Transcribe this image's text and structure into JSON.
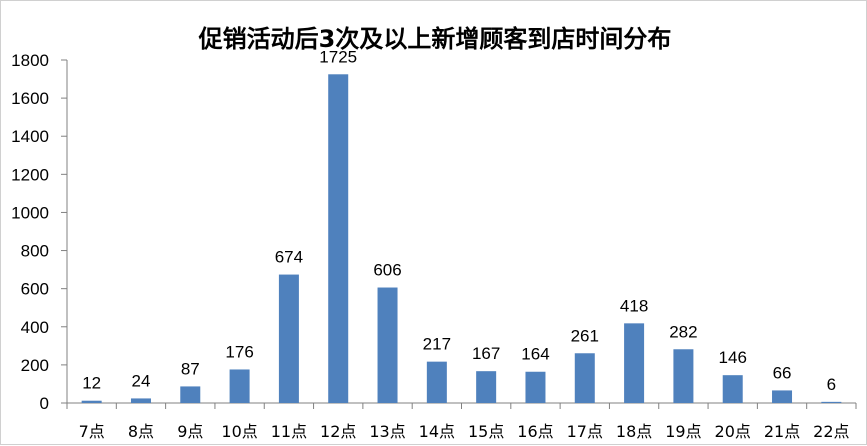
{
  "chart_data": {
    "type": "bar",
    "title": "促销活动后3次及以上新增顾客到店时间分布",
    "xlabel": "",
    "ylabel": "",
    "categories": [
      "7点",
      "8点",
      "9点",
      "10点",
      "11点",
      "12点",
      "13点",
      "14点",
      "15点",
      "16点",
      "17点",
      "18点",
      "19点",
      "20点",
      "21点",
      "22点"
    ],
    "values": [
      12,
      24,
      87,
      176,
      674,
      1725,
      606,
      217,
      167,
      164,
      261,
      418,
      282,
      146,
      66,
      6
    ],
    "value_labels": [
      "12",
      "24",
      "87",
      "176",
      "674",
      "1725",
      "606",
      "217",
      "167",
      "164",
      "261",
      "418",
      "282",
      "146",
      "66",
      "6"
    ],
    "ylim": [
      0,
      1800
    ],
    "yticks": [
      0,
      200,
      400,
      600,
      800,
      1000,
      1200,
      1400,
      1600,
      1800
    ],
    "ytick_labels": [
      "0",
      "200",
      "400",
      "600",
      "800",
      "1000",
      "1200",
      "1400",
      "1600",
      "1800"
    ],
    "grid": false,
    "legend": "none",
    "bar_color": "#4F81BD",
    "axis_color": "#808080"
  }
}
